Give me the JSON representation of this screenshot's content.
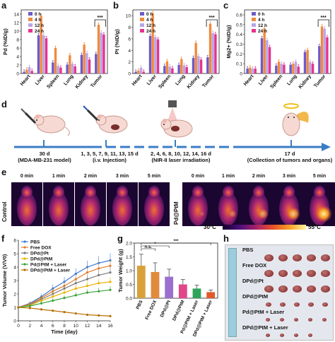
{
  "panels": {
    "a": "a",
    "b": "b",
    "c": "c",
    "d": "d",
    "e": "e",
    "f": "f",
    "g": "g",
    "h": "h"
  },
  "colors": {
    "h0": "#6e5ac8",
    "h4": "#f08a3c",
    "h12": "#b9a6e6",
    "h24": "#e5338f"
  },
  "legend_abc": [
    "0 h",
    "4 h",
    "12 h",
    "24 h"
  ],
  "sig": "***",
  "chart_data": [
    {
      "type": "bar",
      "panel": "a",
      "ylabel": "Pd (%ID/g)",
      "ylim": [
        0,
        15
      ],
      "yticks": [
        0,
        2,
        4,
        6,
        8,
        10,
        12,
        14
      ],
      "categories": [
        "Heart",
        "Liver",
        "Spleen",
        "Lung",
        "Kidney",
        "Tumor"
      ],
      "series": [
        {
          "name": "0 h",
          "values": [
            0.4,
            9.0,
            2.6,
            2.1,
            4.4,
            4.6
          ]
        },
        {
          "name": "4 h",
          "values": [
            0.9,
            13.6,
            6.0,
            4.3,
            6.8,
            11.5
          ]
        },
        {
          "name": "12 h",
          "values": [
            1.5,
            9.0,
            1.8,
            2.3,
            4.8,
            9.6
          ]
        },
        {
          "name": "24 h",
          "values": [
            0.6,
            8.3,
            1.4,
            1.7,
            3.3,
            9.2
          ]
        }
      ]
    },
    {
      "type": "bar",
      "panel": "b",
      "ylabel": "Pt (%ID/g)",
      "ylim": [
        0,
        11
      ],
      "yticks": [
        0,
        2,
        4,
        6,
        8,
        10
      ],
      "categories": [
        "Heart",
        "Liver",
        "Spleen",
        "Lung",
        "Kidney",
        "Tumor"
      ],
      "series": [
        {
          "name": "0 h",
          "values": [
            0.3,
            6.5,
            1.3,
            1.5,
            2.7,
            2.8
          ]
        },
        {
          "name": "4 h",
          "values": [
            0.5,
            10.4,
            2.1,
            2.5,
            5.3,
            8.6
          ]
        },
        {
          "name": "12 h",
          "values": [
            1.0,
            6.3,
            1.2,
            1.4,
            3.0,
            7.0
          ]
        },
        {
          "name": "24 h",
          "values": [
            0.3,
            5.9,
            0.9,
            1.1,
            2.4,
            6.8
          ]
        }
      ]
    },
    {
      "type": "bar",
      "panel": "c",
      "ylabel": "Mg2+ (%ID/g)",
      "ylim": [
        0,
        0.65
      ],
      "yticks": [
        0,
        0.1,
        0.2,
        0.3,
        0.4,
        0.5,
        0.6
      ],
      "categories": [
        "Heart",
        "Liver",
        "Spleen",
        "Lung",
        "Kidney",
        "Tumor"
      ],
      "series": [
        {
          "name": "0 h",
          "values": [
            0.05,
            0.36,
            0.08,
            0.09,
            0.22,
            0.28
          ]
        },
        {
          "name": "4 h",
          "values": [
            0.06,
            0.46,
            0.12,
            0.1,
            0.24,
            0.48
          ]
        },
        {
          "name": "12 h",
          "values": [
            0.05,
            0.34,
            0.1,
            0.12,
            0.12,
            0.46
          ]
        },
        {
          "name": "24 h",
          "values": [
            0.05,
            0.27,
            0.09,
            0.07,
            0.1,
            0.37
          ]
        }
      ]
    },
    {
      "type": "line",
      "panel": "f",
      "ylabel": "Tumor Volume (V/V0)",
      "xlabel": "Time (day)",
      "xlim": [
        0,
        16
      ],
      "ylim": [
        0,
        6
      ],
      "xticks": [
        0,
        2,
        4,
        6,
        8,
        10,
        12,
        14,
        16
      ],
      "yticks": [
        0,
        1,
        2,
        3,
        4,
        5,
        6
      ],
      "x": [
        0,
        2,
        4,
        6,
        8,
        10,
        12,
        14,
        16
      ],
      "series": [
        {
          "name": "PBS",
          "color": "#3a7ad8",
          "values": [
            1.0,
            1.3,
            1.8,
            2.4,
            2.9,
            3.5,
            4.0,
            4.3,
            4.5
          ]
        },
        {
          "name": "Free DOX",
          "color": "#e27b2a",
          "values": [
            1.0,
            1.25,
            1.7,
            2.2,
            2.6,
            3.1,
            3.6,
            3.9,
            4.1
          ]
        },
        {
          "name": "DPd@Pt",
          "color": "#7a7a7a",
          "values": [
            1.0,
            1.2,
            1.6,
            2.0,
            2.4,
            2.8,
            3.1,
            3.4,
            3.6
          ]
        },
        {
          "name": "DPd@PtM",
          "color": "#e8b200",
          "values": [
            1.0,
            1.15,
            1.5,
            1.8,
            2.1,
            2.4,
            2.6,
            2.8,
            2.9
          ]
        },
        {
          "name": "Pd@PtM + Laser",
          "color": "#3aa33a",
          "values": [
            1.0,
            1.1,
            1.3,
            1.5,
            1.7,
            1.9,
            2.1,
            2.2,
            2.3
          ]
        },
        {
          "name": "DPd@PtM + Laser",
          "color": "#b86e00",
          "values": [
            1.0,
            0.95,
            0.85,
            0.75,
            0.65,
            0.55,
            0.45,
            0.4,
            0.35
          ]
        }
      ]
    },
    {
      "type": "bar",
      "panel": "g",
      "ylabel": "Tumor Weight (g)",
      "ylim": [
        0,
        2.0
      ],
      "yticks": [
        0.0,
        0.5,
        1.0,
        1.5,
        2.0
      ],
      "categories": [
        "PBS",
        "Free DOX",
        "DPd@Pt",
        "DPd@PtM",
        "Pd@PtM + Laser",
        "DPd@PtM + Laser"
      ],
      "colors": [
        "#d9a13a",
        "#e28a3c",
        "#9b6fcf",
        "#e0478a",
        "#2fa45a",
        "#e35a2a"
      ],
      "values": [
        1.18,
        0.95,
        0.78,
        0.5,
        0.35,
        0.22
      ],
      "sig_labels": [
        "n.s.",
        "*",
        "***"
      ]
    }
  ],
  "d": {
    "steps": [
      {
        "day": "30 d",
        "desc": "(MDA-MB-231 model)"
      },
      {
        "day": "1, 3, 5, 7, 9, 11, 13, 15 d",
        "desc": "(i.v. Injection)"
      },
      {
        "day": "2, 4, 6, 8, 10, 12, 14, 16 d",
        "desc": "(NIR-II laser irradiation)"
      },
      {
        "day": "17 d",
        "desc": "(Collection of tumors and organs)"
      }
    ]
  },
  "e": {
    "times": [
      "0 min",
      "1 min",
      "2 min",
      "3 min",
      "5 min"
    ],
    "row_left": "Control",
    "row_right": "Pd@PtM",
    "scale_min": "30°C",
    "scale_max": "55°C"
  },
  "h": {
    "groups": [
      "PBS",
      "Free DOX",
      "DPd@Pt",
      "DPd@PtM",
      "Pd@PtM + Laser",
      "DPd@PtM + Laser"
    ]
  }
}
